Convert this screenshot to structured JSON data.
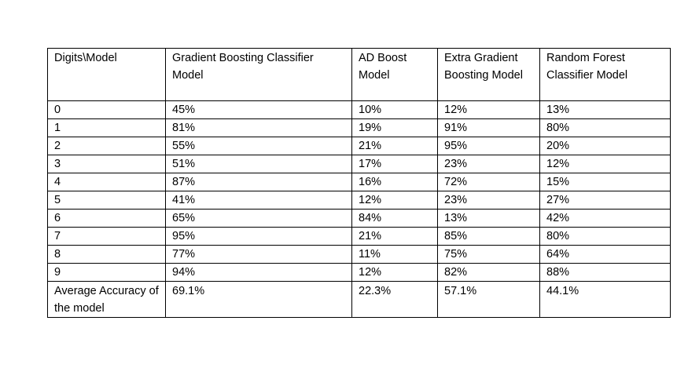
{
  "table": {
    "headers": [
      "Digits\\Model",
      "Gradient Boosting Classifier Model",
      "AD Boost Model",
      "Extra Gradient Boosting Model",
      "Random Forest Classifier Model"
    ],
    "rows": [
      [
        "0",
        "45%",
        "10%",
        "12%",
        "13%"
      ],
      [
        "1",
        "81%",
        "19%",
        "91%",
        "80%"
      ],
      [
        "2",
        "55%",
        "21%",
        "95%",
        "20%"
      ],
      [
        "3",
        "51%",
        "17%",
        "23%",
        "12%"
      ],
      [
        "4",
        "87%",
        "16%",
        "72%",
        "15%"
      ],
      [
        "5",
        "41%",
        "12%",
        "23%",
        "27%"
      ],
      [
        "6",
        "65%",
        "84%",
        "13%",
        "42%"
      ],
      [
        "7",
        "95%",
        "21%",
        "85%",
        "80%"
      ],
      [
        "8",
        "77%",
        "11%",
        "75%",
        "64%"
      ],
      [
        "9",
        "94%",
        "12%",
        "82%",
        "88%"
      ]
    ],
    "footer": [
      "Average Accuracy of the model",
      "69.1%",
      "22.3%",
      "57.1%",
      "44.1%"
    ]
  }
}
